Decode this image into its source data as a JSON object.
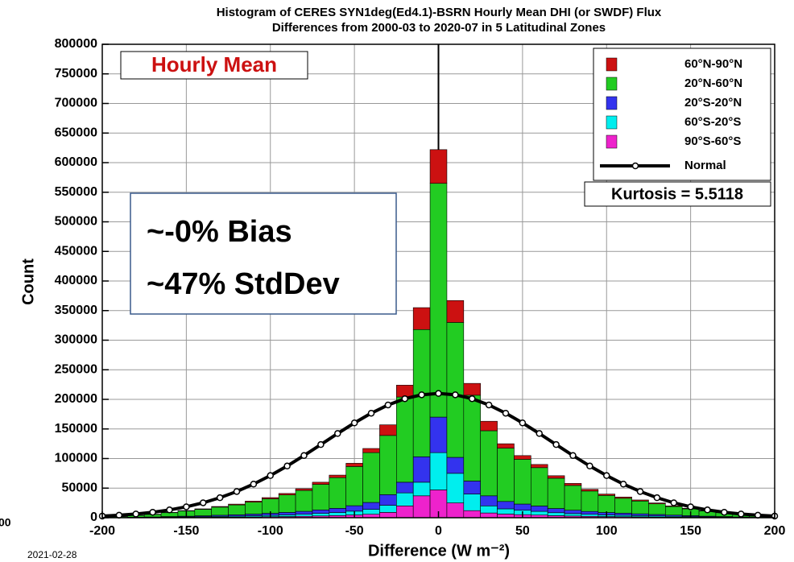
{
  "chart_data": {
    "type": "histogram",
    "title": "Histogram of CERES SYN1deg(Ed4.1)-BSRN Hourly Mean DHI (or SWDF) Flux",
    "subtitle": "Differences from 2000-03 to 2020-07 in 5 Latitudinal Zones",
    "x_label": "Difference (W m⁻²)",
    "y_label": "Count",
    "bins": [
      -195,
      -185,
      -175,
      -165,
      -155,
      -145,
      -135,
      -125,
      -115,
      -105,
      -95,
      -85,
      -75,
      -65,
      -55,
      -45,
      -35,
      -25,
      -15,
      -5,
      5,
      15,
      25,
      35,
      45,
      55,
      65,
      75,
      85,
      95,
      105,
      115,
      125,
      135,
      145,
      155,
      165,
      175,
      185,
      195
    ],
    "series": [
      {
        "name": "60°N-90°N",
        "color": "#cc1111",
        "values": [
          100,
          200,
          400,
          500,
          700,
          900,
          1100,
          1400,
          1700,
          2000,
          2500,
          2900,
          3600,
          4300,
          5500,
          7000,
          18000,
          20000,
          37000,
          57000,
          37000,
          20000,
          16000,
          7500,
          6300,
          5400,
          4300,
          3500,
          2900,
          2400,
          2100,
          1800,
          1500,
          1200,
          1000,
          700,
          500,
          400,
          200
        ]
      },
      {
        "name": "20°N-60°N",
        "color": "#22cc22",
        "values": [
          1400,
          2900,
          4300,
          6500,
          8700,
          10800,
          13700,
          16600,
          20100,
          24500,
          29500,
          35300,
          43200,
          51800,
          66200,
          84200,
          100000,
          144000,
          215000,
          395000,
          228000,
          145000,
          110000,
          90000,
          75600,
          64800,
          51100,
          41800,
          34500,
          28800,
          25200,
          21600,
          18000,
          14400,
          11500,
          8700,
          6500,
          4300,
          2100
        ]
      },
      {
        "name": "20°S-20°N",
        "color": "#3333ee",
        "values": [
          200,
          400,
          600,
          900,
          1200,
          1500,
          1900,
          2300,
          2800,
          3400,
          4100,
          4900,
          6000,
          7200,
          9200,
          11700,
          18000,
          18000,
          43000,
          60000,
          27000,
          22000,
          17000,
          12500,
          10500,
          9000,
          7100,
          5800,
          4800,
          4000,
          3500,
          3000,
          2500,
          2000,
          1600,
          1200,
          900,
          600,
          300
        ]
      },
      {
        "name": "60°S-20°S",
        "color": "#00eeee",
        "values": [
          200,
          300,
          400,
          600,
          800,
          1000,
          1300,
          1600,
          2000,
          2400,
          2900,
          3400,
          4200,
          5000,
          6400,
          8200,
          12000,
          22000,
          23000,
          63000,
          50000,
          28000,
          12000,
          8800,
          7400,
          6300,
          5000,
          4000,
          3400,
          2800,
          2500,
          2100,
          1800,
          1400,
          1100,
          800,
          600,
          400,
          200
        ]
      },
      {
        "name": "90°S-60°S",
        "color": "#ee22cc",
        "values": [
          100,
          200,
          300,
          500,
          600,
          800,
          1000,
          1100,
          1400,
          1700,
          2000,
          2500,
          3000,
          3700,
          4700,
          5900,
          9000,
          20000,
          37000,
          47000,
          25000,
          12000,
          8000,
          6200,
          5200,
          4500,
          3500,
          2900,
          2400,
          2000,
          1700,
          1500,
          1200,
          1000,
          800,
          600,
          500,
          300,
          200
        ]
      }
    ],
    "normal": {
      "name": "Normal",
      "color": "#000000",
      "x": [
        -200,
        -190,
        -180,
        -170,
        -160,
        -150,
        -140,
        -130,
        -120,
        -110,
        -100,
        -90,
        -80,
        -70,
        -60,
        -50,
        -40,
        -30,
        -20,
        -10,
        0,
        10,
        20,
        30,
        40,
        50,
        60,
        70,
        80,
        90,
        100,
        110,
        120,
        130,
        140,
        150,
        160,
        170,
        180,
        190,
        200
      ],
      "values": [
        2800,
        4200,
        6300,
        9200,
        13200,
        18400,
        25200,
        33800,
        44300,
        56800,
        71200,
        87400,
        105100,
        123600,
        142300,
        160200,
        176600,
        190500,
        201100,
        207700,
        210000,
        207700,
        201100,
        190500,
        176600,
        160200,
        142300,
        123600,
        105100,
        87400,
        71200,
        56800,
        44300,
        33800,
        25200,
        18400,
        13200,
        9200,
        6300,
        4200,
        2800
      ]
    },
    "xlim": [
      -200,
      200
    ],
    "xticks": [
      -200,
      -150,
      -100,
      -50,
      0,
      50,
      100,
      150,
      200
    ],
    "ylim": [
      0,
      800000
    ],
    "yticks": [
      0,
      50000,
      100000,
      150000,
      200000,
      250000,
      300000,
      350000,
      400000,
      450000,
      500000,
      550000,
      600000,
      650000,
      700000,
      750000,
      800000
    ],
    "grid": true,
    "legend": "upper right",
    "stacked": true,
    "annotations": {
      "panel_label": "Hourly Mean",
      "stats": [
        "~-0% Bias",
        "~47% StdDev"
      ],
      "kurtosis": "Kurtosis = 5.5118",
      "date": "2021-02-28",
      "edge_fragment": "00"
    }
  }
}
